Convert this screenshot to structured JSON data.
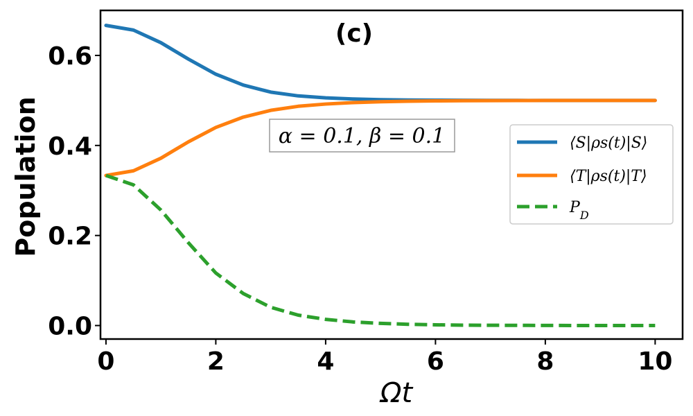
{
  "chart_data": {
    "type": "line",
    "panel_label": "(c)",
    "xlabel": "Ωt",
    "ylabel": "Population",
    "xlim": [
      -0.1,
      10.5
    ],
    "ylim": [
      -0.03,
      0.7
    ],
    "xticks": [
      0,
      2,
      4,
      6,
      8,
      10
    ],
    "xtick_labels": [
      "0",
      "2",
      "4",
      "6",
      "8",
      "10"
    ],
    "yticks": [
      0.0,
      0.2,
      0.4,
      0.6
    ],
    "ytick_labels": [
      "0.0",
      "0.2",
      "0.4",
      "0.6"
    ],
    "grid": false,
    "legend_position": "center-right",
    "annotation": "α = 0.1, β = 0.1",
    "x": [
      0,
      0.5,
      1,
      1.5,
      2,
      2.5,
      3,
      3.5,
      4,
      4.5,
      5,
      5.5,
      6,
      6.5,
      7,
      7.5,
      8,
      8.5,
      9,
      9.5,
      10
    ],
    "series": [
      {
        "name": "⟨S|ρs(t)|S⟩",
        "color": "#1f77b4",
        "style": "solid",
        "values": [
          0.6667,
          0.6563,
          0.6283,
          0.5919,
          0.5583,
          0.5341,
          0.5185,
          0.5101,
          0.5057,
          0.5032,
          0.5018,
          0.501,
          0.5006,
          0.5003,
          0.5002,
          0.5001,
          0.5,
          0.5,
          0.5,
          0.5,
          0.5
        ]
      },
      {
        "name": "⟨T|ρs(t)|T⟩",
        "color": "#ff7f0e",
        "style": "solid",
        "values": [
          0.3333,
          0.3437,
          0.3717,
          0.408,
          0.44,
          0.463,
          0.478,
          0.487,
          0.492,
          0.4952,
          0.497,
          0.4982,
          0.499,
          0.4994,
          0.4996,
          0.4998,
          0.4999,
          0.5,
          0.5,
          0.5,
          0.5
        ]
      },
      {
        "name": "P_D",
        "color": "#2ca02c",
        "style": "dashed",
        "values": [
          0.3333,
          0.3125,
          0.2566,
          0.1839,
          0.1167,
          0.0711,
          0.0405,
          0.0231,
          0.0137,
          0.008,
          0.0048,
          0.0028,
          0.0016,
          0.0009,
          0.0006,
          0.0004,
          0.0002,
          0.0001,
          0.0001,
          0.0,
          0.0
        ]
      }
    ]
  }
}
